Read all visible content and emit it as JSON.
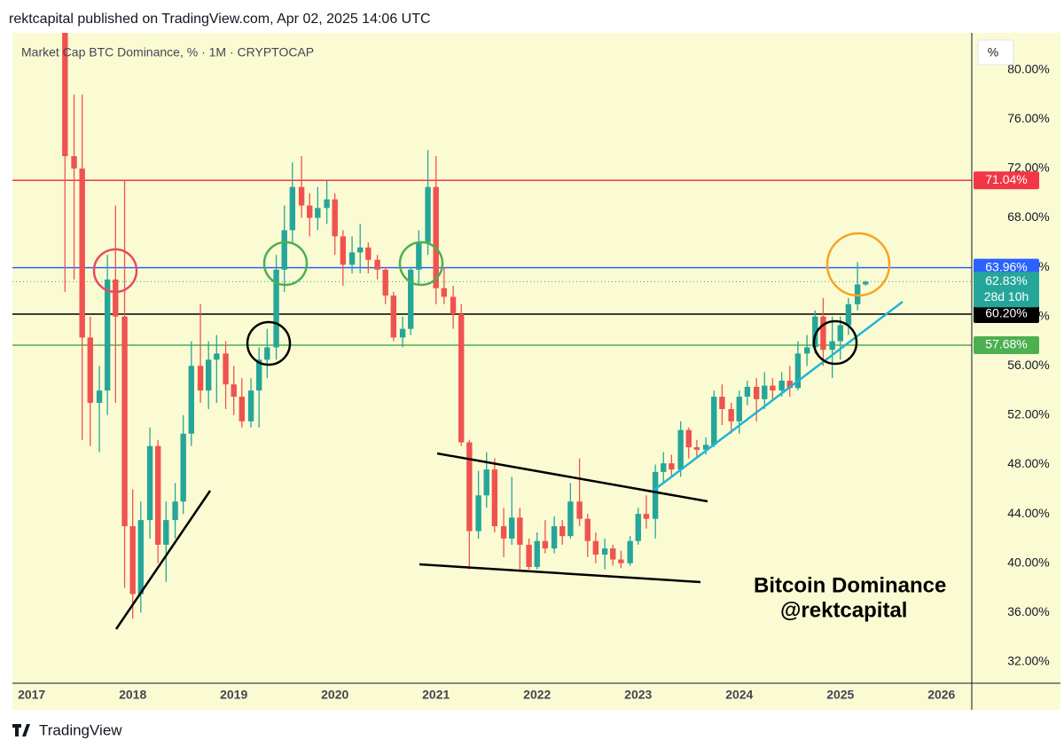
{
  "header": "rektcapital published on TradingView.com, Apr 02, 2025 14:06 UTC",
  "footer": "TradingView",
  "chart_data": {
    "type": "candlestick",
    "title": "Market Cap BTC Dominance, % · 1M · CRYPTOCAP",
    "unit_box": "%",
    "annotations": [
      "Bitcoin Dominance",
      "@rektcapital"
    ],
    "up_color": "#26a69a",
    "down_color": "#ef5350",
    "xlim": [
      2016.81,
      2026.3
    ],
    "xticks": [
      2017,
      2018,
      2019,
      2020,
      2021,
      2022,
      2023,
      2024,
      2025,
      2026
    ],
    "ylim": [
      30.27,
      83
    ],
    "yticks": [
      {
        "value": 32,
        "label": "32.00%"
      },
      {
        "value": 36,
        "label": "36.00%"
      },
      {
        "value": 40,
        "label": "40.00%"
      },
      {
        "value": 44,
        "label": "44.00%"
      },
      {
        "value": 48,
        "label": "48.00%"
      },
      {
        "value": 52,
        "label": "52.00%"
      },
      {
        "value": 56,
        "label": "56.00%"
      },
      {
        "value": 60,
        "label": "60.00%"
      },
      {
        "value": 64,
        "label": "64.00%"
      },
      {
        "value": 68,
        "label": "68.00%"
      },
      {
        "value": 72,
        "label": "72.00%"
      },
      {
        "value": 76,
        "label": "76.00%"
      },
      {
        "value": 80,
        "label": "80.00%"
      }
    ],
    "grid": false,
    "levels": [
      {
        "value": 71.04,
        "label": "71.04%",
        "color": "#f23645"
      },
      {
        "value": 63.96,
        "label": "63.96%",
        "color": "#2962ff"
      },
      {
        "value": 60.2,
        "label": "60.20%",
        "color": "#000000"
      },
      {
        "value": 57.68,
        "label": "57.68%",
        "color": "#4caf50"
      }
    ],
    "last_price": {
      "value": 62.83,
      "label": "62.83%",
      "countdown": "28d 10h",
      "color": "#26a69a"
    },
    "x": [
      2017.33,
      2017.42,
      2017.5,
      2017.58,
      2017.67,
      2017.75,
      2017.83,
      2017.92,
      2018,
      2018.08,
      2018.17,
      2018.25,
      2018.33,
      2018.42,
      2018.5,
      2018.58,
      2018.67,
      2018.75,
      2018.83,
      2018.92,
      2019,
      2019.08,
      2019.17,
      2019.25,
      2019.33,
      2019.42,
      2019.5,
      2019.58,
      2019.67,
      2019.75,
      2019.83,
      2019.92,
      2020,
      2020.08,
      2020.17,
      2020.25,
      2020.33,
      2020.42,
      2020.5,
      2020.58,
      2020.67,
      2020.75,
      2020.83,
      2020.92,
      2021,
      2021.08,
      2021.17,
      2021.25,
      2021.33,
      2021.42,
      2021.5,
      2021.58,
      2021.67,
      2021.75,
      2021.83,
      2021.92,
      2022,
      2022.08,
      2022.17,
      2022.25,
      2022.33,
      2022.42,
      2022.5,
      2022.58,
      2022.67,
      2022.75,
      2022.83,
      2022.92,
      2023,
      2023.08,
      2023.17,
      2023.25,
      2023.33,
      2023.42,
      2023.5,
      2023.58,
      2023.67,
      2023.75,
      2023.83,
      2023.92,
      2024,
      2024.08,
      2024.17,
      2024.25,
      2024.33,
      2024.42,
      2024.5,
      2024.58,
      2024.67,
      2024.75,
      2024.83,
      2024.92,
      2025,
      2025.08,
      2025.17,
      2025.25
    ],
    "open": [
      85,
      73,
      72,
      58.3,
      53,
      54,
      63,
      60,
      43,
      37.5,
      43.5,
      49.5,
      41.5,
      43.5,
      45,
      50.5,
      56,
      54,
      56.5,
      57,
      54.5,
      53.5,
      51.5,
      54,
      56.5,
      57.5,
      63.8,
      67,
      70.5,
      69,
      68,
      68.8,
      69.5,
      66.5,
      64.2,
      65.2,
      65.6,
      64.6,
      63.8,
      61.7,
      58.3,
      59,
      63.8,
      66,
      70.5,
      62.3,
      61.6,
      60.2,
      49.8,
      42.6,
      45.5,
      47.6,
      43,
      42,
      43.7,
      41.5,
      39.7,
      41.8,
      41.2,
      43,
      42.2,
      45,
      43.6,
      41.8,
      40.7,
      41.2,
      40.3,
      40,
      41.8,
      44,
      43.6,
      47.4,
      48.1,
      47.6,
      50.8,
      49.4,
      49.2,
      49.6,
      53.5,
      52.5,
      51.5,
      53.5,
      54.3,
      53.3,
      54.4,
      54,
      54.8,
      54.2,
      57,
      57.5,
      60,
      57.3,
      58,
      59.3,
      61,
      62.6
    ],
    "high": [
      88,
      78,
      78,
      60,
      56,
      65,
      69,
      71,
      46,
      45,
      51,
      50,
      45,
      46.5,
      52,
      58,
      61,
      58,
      58.5,
      58,
      56,
      55,
      55,
      57.5,
      59,
      65,
      69,
      72.5,
      73,
      70,
      70.5,
      71,
      70,
      67,
      66.5,
      67.5,
      66,
      65,
      64,
      62,
      60,
      64,
      67,
      73.5,
      73,
      64,
      62.5,
      61,
      50,
      47.5,
      49,
      48.5,
      44.5,
      47,
      44.5,
      42,
      42.5,
      43.5,
      43.8,
      43.5,
      46.5,
      48.5,
      44,
      42.5,
      42,
      41.5,
      41,
      42.2,
      44.5,
      45.5,
      48,
      49,
      48.8,
      51.5,
      51,
      50,
      50.2,
      54,
      54.5,
      53,
      54,
      54.8,
      55,
      55.5,
      55,
      55.5,
      56,
      58,
      58.5,
      60.5,
      61.5,
      60,
      60,
      61.5,
      64.4,
      62.9
    ],
    "low": [
      62,
      63,
      50,
      49.5,
      49,
      52,
      53,
      38,
      35.5,
      36,
      42,
      40,
      38.5,
      42,
      44,
      49.5,
      53,
      52.5,
      53,
      52.5,
      52,
      51,
      51,
      51,
      55,
      56.5,
      62,
      66,
      68,
      66.5,
      67,
      67.5,
      65,
      62.5,
      63.5,
      63.5,
      63.5,
      63,
      61,
      58,
      57.5,
      58.5,
      62.5,
      65,
      61,
      61,
      59,
      49.5,
      39.5,
      42,
      44.5,
      42.5,
      40.5,
      41.5,
      39.5,
      39.5,
      39.5,
      40.8,
      40.8,
      41.5,
      42,
      43,
      40.5,
      40,
      39.5,
      39.8,
      39.6,
      39.8,
      41.5,
      42.8,
      42,
      46.5,
      47,
      47,
      48.5,
      48.5,
      48.8,
      49.4,
      51.2,
      50.5,
      50.5,
      52.8,
      51.5,
      52.5,
      53.3,
      53.5,
      53.5,
      54,
      56,
      57,
      56,
      55,
      56.5,
      58.5,
      60.5,
      62.5
    ],
    "close": [
      73,
      72,
      58.3,
      53,
      54,
      63,
      60,
      43,
      37.5,
      43.5,
      49.5,
      41.5,
      43.5,
      45,
      50.5,
      56,
      54,
      56.5,
      57,
      54.5,
      53.5,
      51.5,
      54,
      56.5,
      57.5,
      63.8,
      67,
      70.5,
      69,
      68,
      68.8,
      69.5,
      66.5,
      64.2,
      65.2,
      65.6,
      64.6,
      63.8,
      61.7,
      58.3,
      59,
      63.8,
      66,
      70.5,
      62.3,
      61.6,
      60.2,
      49.8,
      42.6,
      45.5,
      47.6,
      43,
      42,
      43.7,
      41.5,
      39.7,
      41.8,
      41.2,
      43,
      42.2,
      45,
      43.6,
      41.8,
      40.7,
      41.2,
      40.3,
      40,
      41.8,
      44,
      43.6,
      47.4,
      48.1,
      47.6,
      50.8,
      49.4,
      49.2,
      49.6,
      53.5,
      52.5,
      51.5,
      53.5,
      54.3,
      53.3,
      54.4,
      54,
      54.8,
      54.2,
      57,
      57.5,
      60,
      57.3,
      58,
      59.3,
      61,
      62.6,
      62.83
    ]
  }
}
